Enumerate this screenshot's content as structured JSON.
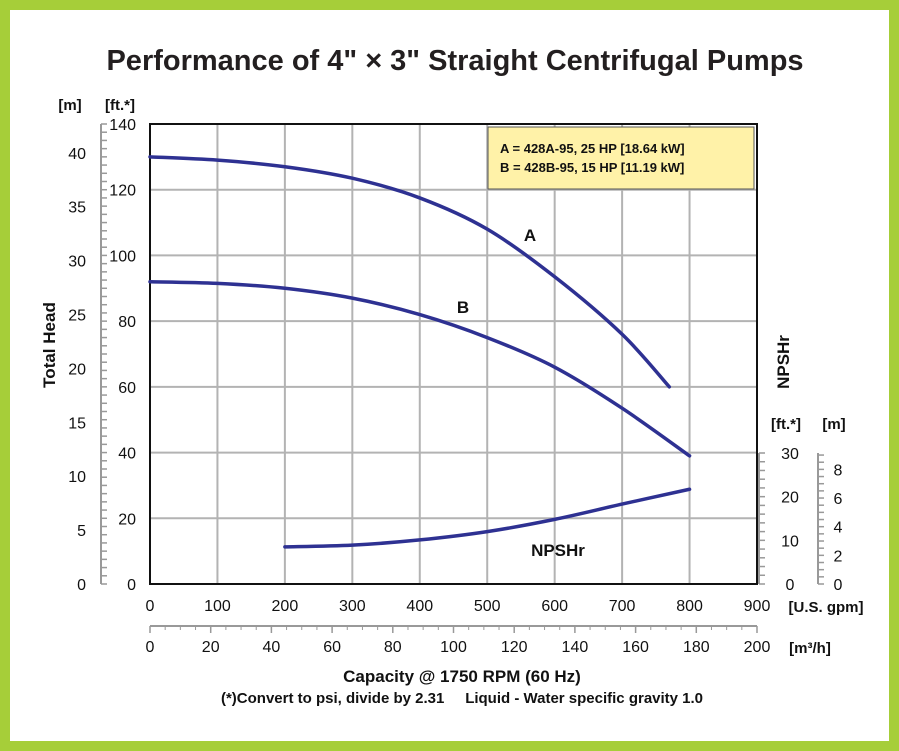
{
  "chart_data": {
    "type": "line",
    "title": "Performance of 4\" × 3\" Straight Centrifugal Pumps",
    "colors": {
      "frame": "#a6ce39",
      "curve": "#2e3192",
      "legend_bg": "#fff2a8",
      "grid": "#b3b3b3"
    },
    "x_axis": {
      "label": "Capacity @ 1750 RPM (60 Hz)",
      "unit": "[U.S. gpm]",
      "range": [
        0,
        900
      ],
      "ticks": [
        "0",
        "100",
        "200",
        "300",
        "400",
        "500",
        "600",
        "700",
        "800",
        "900"
      ]
    },
    "x2_axis": {
      "unit": "[m³/h]",
      "range": [
        0,
        200
      ],
      "ticks": [
        "0",
        "20",
        "40",
        "60",
        "80",
        "100",
        "120",
        "140",
        "160",
        "180",
        "200"
      ]
    },
    "y_axis": {
      "label": "Total Head",
      "unit": "[ft.*]",
      "range": [
        0,
        140
      ],
      "ticks": [
        "0",
        "20",
        "40",
        "60",
        "80",
        "100",
        "120",
        "140"
      ]
    },
    "y_axis_m": {
      "unit": "[m]",
      "range": [
        0,
        42.67
      ],
      "ticks": [
        "0",
        "5",
        "10",
        "15",
        "20",
        "25",
        "30",
        "35",
        "40"
      ]
    },
    "npshr_axis": {
      "label": "NPSHr",
      "unit_ft": "[ft.*]",
      "unit_m": "[m]",
      "range_ft": [
        0,
        30
      ],
      "ticks_ft": [
        "0",
        "10",
        "20",
        "30"
      ],
      "ticks_m": [
        "0",
        "2",
        "4",
        "6",
        "8"
      ]
    },
    "grid": true,
    "series": [
      {
        "name": "A",
        "axis": "head",
        "x": [
          0,
          100,
          200,
          300,
          400,
          500,
          600,
          700,
          770
        ],
        "y": [
          130,
          129,
          127,
          123.5,
          117.5,
          108,
          93.5,
          76,
          60
        ]
      },
      {
        "name": "B",
        "axis": "head",
        "x": [
          0,
          100,
          200,
          300,
          400,
          500,
          600,
          700,
          800
        ],
        "y": [
          92,
          91.5,
          90,
          87,
          82,
          75,
          66,
          53.5,
          39
        ]
      },
      {
        "name": "NPSHr",
        "axis": "npshr",
        "x": [
          200,
          300,
          400,
          500,
          600,
          700,
          800
        ],
        "y": [
          8.5,
          8.9,
          10.1,
          12,
          14.8,
          18.3,
          21.7
        ]
      }
    ],
    "legend": {
      "placement": "top-right",
      "lines": [
        "A = 428A-95, 25 HP [18.64 kW]",
        "B = 428B-95, 15 HP [11.19 kW]"
      ]
    },
    "footnote": "(*)Convert to psi, divide by 2.31     Liquid - Water specific gravity 1.0"
  }
}
